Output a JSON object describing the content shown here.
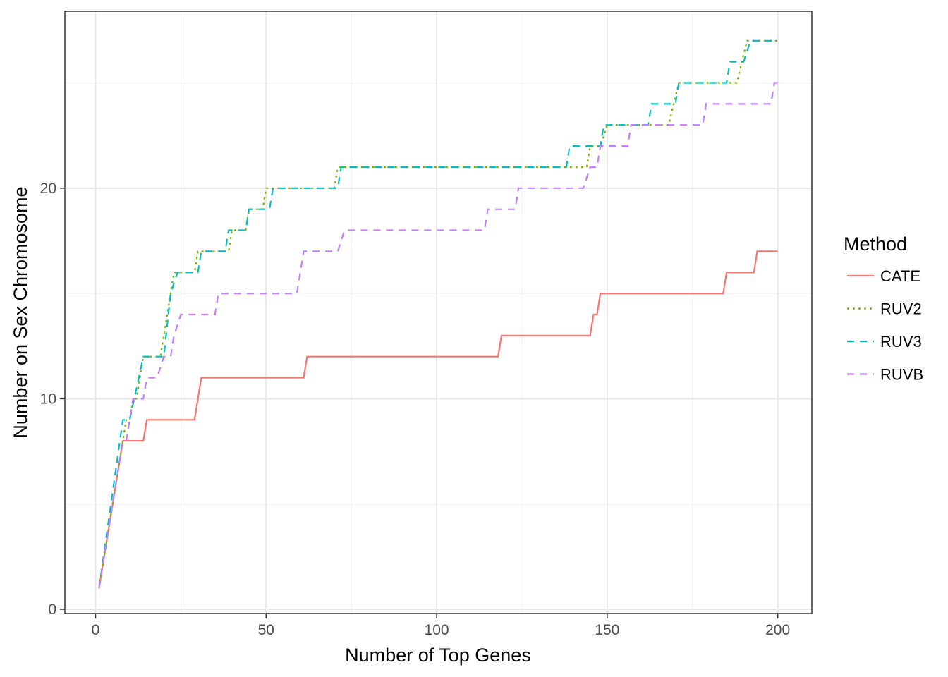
{
  "chart_data": {
    "type": "line",
    "xlabel": "Number of Top Genes",
    "ylabel": "Number on Sex Chromosome",
    "xlim": [
      -9,
      210
    ],
    "ylim": [
      -0.2,
      28.4
    ],
    "x_ticks": [
      0,
      50,
      100,
      150,
      200
    ],
    "x_tick_labels": [
      "0",
      "50",
      "100",
      "150",
      "200"
    ],
    "y_ticks": [
      0,
      10,
      20
    ],
    "y_tick_labels": [
      "0",
      "10",
      "20"
    ],
    "minor_y_ticks": [
      5,
      15,
      25
    ],
    "minor_x_ticks": [
      25,
      75,
      125,
      175
    ],
    "grid": true,
    "legend": {
      "title": "Method",
      "position": "right"
    },
    "series": [
      {
        "name": "CATE",
        "color": "#F8766D",
        "dash": "solid",
        "points": [
          [
            1,
            1
          ],
          [
            8,
            8
          ],
          [
            14,
            8
          ],
          [
            15,
            9
          ],
          [
            29,
            9
          ],
          [
            31,
            11
          ],
          [
            61,
            11
          ],
          [
            62,
            12
          ],
          [
            118,
            12
          ],
          [
            119,
            13
          ],
          [
            145,
            13
          ],
          [
            146,
            14
          ],
          [
            147,
            14
          ],
          [
            148,
            15
          ],
          [
            184,
            15
          ],
          [
            185,
            16
          ],
          [
            193,
            16
          ],
          [
            194,
            17
          ],
          [
            200,
            17
          ]
        ]
      },
      {
        "name": "RUV2",
        "color": "#7CAE00",
        "dash": "dotted",
        "points": [
          [
            1,
            1
          ],
          [
            8,
            8
          ],
          [
            9,
            9
          ],
          [
            10,
            9
          ],
          [
            11,
            10
          ],
          [
            12,
            10
          ],
          [
            14,
            12
          ],
          [
            19,
            12
          ],
          [
            22,
            15
          ],
          [
            23,
            16
          ],
          [
            29,
            16
          ],
          [
            30,
            17
          ],
          [
            39,
            17
          ],
          [
            40,
            18
          ],
          [
            44,
            18
          ],
          [
            45,
            19
          ],
          [
            49,
            19
          ],
          [
            50,
            20
          ],
          [
            70,
            20
          ],
          [
            71,
            21
          ],
          [
            144,
            21
          ],
          [
            145,
            22
          ],
          [
            148,
            22
          ],
          [
            150,
            23
          ],
          [
            168,
            23
          ],
          [
            171,
            25
          ],
          [
            188,
            25
          ],
          [
            191,
            27
          ],
          [
            200,
            27
          ]
        ]
      },
      {
        "name": "RUV3",
        "color": "#00BFC4",
        "dash": "dashed",
        "points": [
          [
            1,
            1
          ],
          [
            8,
            9
          ],
          [
            10,
            9
          ],
          [
            14,
            12
          ],
          [
            20,
            12
          ],
          [
            22,
            15
          ],
          [
            24,
            16
          ],
          [
            30,
            16
          ],
          [
            31,
            17
          ],
          [
            38,
            17
          ],
          [
            39,
            18
          ],
          [
            44,
            18
          ],
          [
            45,
            19
          ],
          [
            51,
            19
          ],
          [
            52,
            20
          ],
          [
            71,
            20
          ],
          [
            72,
            21
          ],
          [
            138,
            21
          ],
          [
            139,
            22
          ],
          [
            148,
            22
          ],
          [
            149,
            23
          ],
          [
            162,
            23
          ],
          [
            163,
            24
          ],
          [
            170,
            24
          ],
          [
            171,
            25
          ],
          [
            185,
            25
          ],
          [
            186,
            26
          ],
          [
            190,
            26
          ],
          [
            192,
            27
          ],
          [
            200,
            27
          ]
        ]
      },
      {
        "name": "RUVB",
        "color": "#C77CFF",
        "dash": "dashed",
        "points": [
          [
            1,
            1
          ],
          [
            8,
            8
          ],
          [
            9,
            8
          ],
          [
            11,
            10
          ],
          [
            14,
            10
          ],
          [
            15,
            11
          ],
          [
            18,
            11
          ],
          [
            20,
            12
          ],
          [
            22,
            12
          ],
          [
            23,
            13
          ],
          [
            25,
            14
          ],
          [
            35,
            14
          ],
          [
            36,
            15
          ],
          [
            59,
            15
          ],
          [
            60,
            16
          ],
          [
            61,
            17
          ],
          [
            71,
            17
          ],
          [
            73,
            18
          ],
          [
            114,
            18
          ],
          [
            115,
            19
          ],
          [
            123,
            19
          ],
          [
            124,
            20
          ],
          [
            143,
            20
          ],
          [
            145,
            21
          ],
          [
            147,
            21
          ],
          [
            148,
            22
          ],
          [
            156,
            22
          ],
          [
            157,
            23
          ],
          [
            178,
            23
          ],
          [
            179,
            24
          ],
          [
            198,
            24
          ],
          [
            199,
            25
          ],
          [
            200,
            25
          ]
        ]
      }
    ]
  }
}
